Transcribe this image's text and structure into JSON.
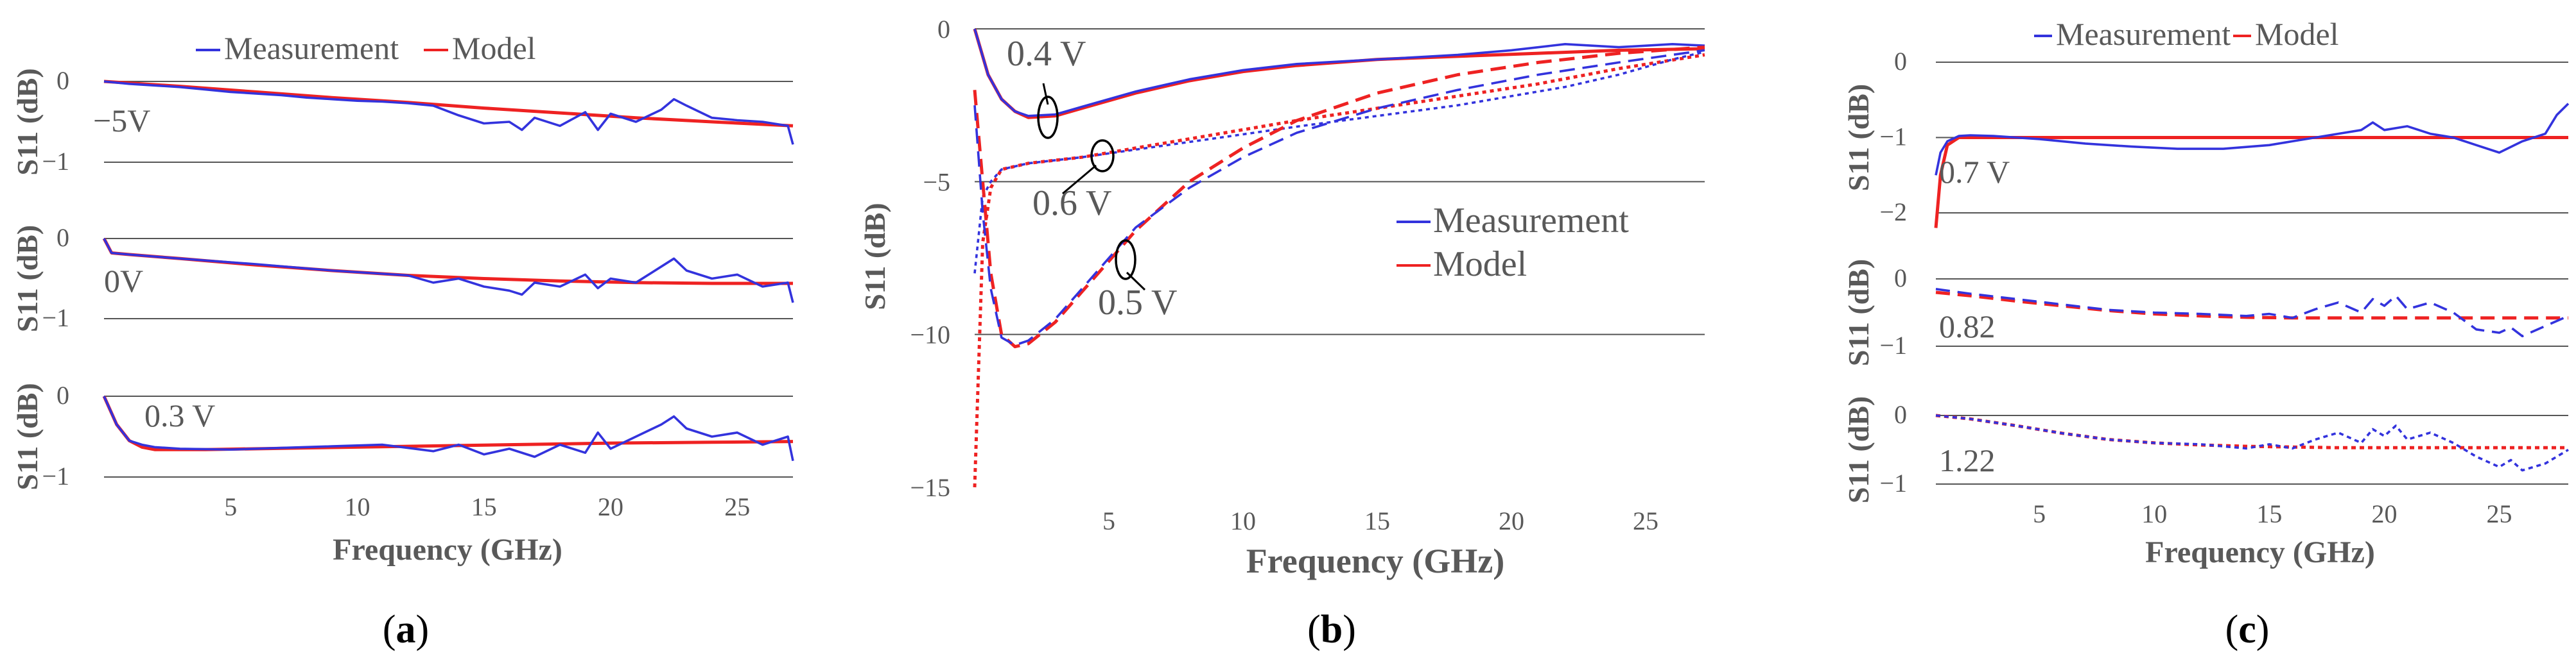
{
  "colors": {
    "measurement": "#3333dd",
    "model": "#ee2222",
    "grid": "#555555",
    "text": "#595959"
  },
  "chart_data": [
    {
      "panel": "a",
      "type": "line",
      "panel_label_parts": [
        "(",
        "a",
        ")"
      ],
      "legend": [
        "Measurement",
        "Model"
      ],
      "xlabel": "Frequency (GHz)",
      "x_ticks": [
        "5",
        "10",
        "15",
        "20",
        "25"
      ],
      "xlim": [
        0,
        27.2
      ],
      "subplots": [
        {
          "ylabel": "S11 (dB)",
          "y_ticks": [
            "0",
            "−1"
          ],
          "ylim": [
            -1,
            0
          ],
          "annotation": "−5V",
          "series": [
            {
              "name": "Model",
              "x": [
                0,
                3,
                6,
                9,
                12,
                15,
                18,
                21,
                24,
                27.2
              ],
              "y": [
                0,
                -0.06,
                -0.13,
                -0.2,
                -0.26,
                -0.33,
                -0.39,
                -0.45,
                -0.5,
                -0.55
              ]
            },
            {
              "name": "Measurement",
              "x": [
                0,
                1,
                2,
                3,
                4,
                5,
                6,
                7,
                8,
                9,
                10,
                11,
                12,
                13,
                14,
                15,
                16,
                16.5,
                17,
                18,
                19,
                19.5,
                20,
                21,
                22,
                22.5,
                23,
                24,
                25,
                26,
                27,
                27.2
              ],
              "y": [
                0,
                -0.03,
                -0.05,
                -0.07,
                -0.1,
                -0.13,
                -0.15,
                -0.17,
                -0.2,
                -0.22,
                -0.24,
                -0.25,
                -0.27,
                -0.3,
                -0.42,
                -0.52,
                -0.5,
                -0.6,
                -0.45,
                -0.55,
                -0.38,
                -0.6,
                -0.4,
                -0.5,
                -0.35,
                -0.22,
                -0.3,
                -0.45,
                -0.48,
                -0.5,
                -0.55,
                -0.78
              ]
            }
          ]
        },
        {
          "ylabel": "S11 (dB)",
          "y_ticks": [
            "0",
            "−1"
          ],
          "ylim": [
            -1,
            0
          ],
          "annotation": "0V",
          "series": [
            {
              "name": "Model",
              "x": [
                0,
                0.3,
                1,
                3,
                6,
                9,
                12,
                15,
                18,
                21,
                24,
                27.2
              ],
              "y": [
                0,
                -0.18,
                -0.2,
                -0.25,
                -0.33,
                -0.4,
                -0.46,
                -0.5,
                -0.53,
                -0.55,
                -0.56,
                -0.56
              ]
            },
            {
              "name": "Measurement",
              "x": [
                0,
                0.3,
                1,
                3,
                6,
                9,
                12,
                13,
                14,
                15,
                16,
                16.5,
                17,
                18,
                19,
                19.5,
                20,
                21,
                22,
                22.5,
                23,
                24,
                25,
                26,
                27,
                27.2
              ],
              "y": [
                0,
                -0.18,
                -0.2,
                -0.25,
                -0.32,
                -0.4,
                -0.46,
                -0.55,
                -0.5,
                -0.6,
                -0.65,
                -0.7,
                -0.55,
                -0.6,
                -0.45,
                -0.62,
                -0.5,
                -0.55,
                -0.35,
                -0.25,
                -0.4,
                -0.5,
                -0.45,
                -0.6,
                -0.55,
                -0.8
              ]
            }
          ]
        },
        {
          "ylabel": "S11 (dB)",
          "y_ticks": [
            "0",
            "−1"
          ],
          "ylim": [
            -1,
            0
          ],
          "annotation": "0.3 V",
          "series": [
            {
              "name": "Model",
              "x": [
                0,
                0.5,
                1,
                1.5,
                2,
                4,
                8,
                12,
                16,
                20,
                24,
                27.2
              ],
              "y": [
                0,
                -0.35,
                -0.55,
                -0.63,
                -0.66,
                -0.66,
                -0.64,
                -0.62,
                -0.6,
                -0.58,
                -0.57,
                -0.56
              ]
            },
            {
              "name": "Measurement",
              "x": [
                0,
                0.5,
                1,
                1.5,
                2,
                3,
                5,
                7,
                9,
                11,
                13,
                14,
                15,
                16,
                17,
                18,
                19,
                19.5,
                20,
                21,
                22,
                22.5,
                23,
                24,
                25,
                26,
                27,
                27.2
              ],
              "y": [
                0,
                -0.35,
                -0.55,
                -0.6,
                -0.63,
                -0.65,
                -0.66,
                -0.64,
                -0.62,
                -0.6,
                -0.68,
                -0.6,
                -0.72,
                -0.65,
                -0.75,
                -0.6,
                -0.7,
                -0.45,
                -0.65,
                -0.5,
                -0.35,
                -0.25,
                -0.4,
                -0.5,
                -0.45,
                -0.6,
                -0.5,
                -0.8
              ]
            }
          ]
        }
      ]
    },
    {
      "panel": "b",
      "type": "line",
      "panel_label_parts": [
        "(",
        "b",
        ")"
      ],
      "legend": [
        "Measurement",
        "Model"
      ],
      "xlabel": "Frequency (GHz)",
      "ylabel": "S11 (dB)",
      "x_ticks": [
        "5",
        "10",
        "15",
        "20",
        "25"
      ],
      "y_ticks": [
        "0",
        "−5",
        "−10",
        "−15"
      ],
      "xlim": [
        0,
        27.2
      ],
      "ylim": [
        -15,
        0
      ],
      "annotations": [
        "0.4 V",
        "0.6 V",
        "0.5 V"
      ],
      "series": [
        {
          "name": "Model 0.4 V",
          "x": [
            0,
            0.5,
            1,
            1.5,
            2,
            3,
            4,
            6,
            8,
            10,
            12,
            15,
            18,
            21,
            24,
            27.2
          ],
          "y": [
            0,
            -1.5,
            -2.3,
            -2.7,
            -2.9,
            -2.85,
            -2.6,
            -2.1,
            -1.7,
            -1.4,
            -1.2,
            -1.0,
            -0.9,
            -0.8,
            -0.7,
            -0.65
          ]
        },
        {
          "name": "Measurement 0.4 V",
          "x": [
            0,
            0.5,
            1,
            1.5,
            2,
            3,
            4,
            6,
            8,
            10,
            12,
            15,
            18,
            20,
            22,
            24,
            26,
            27.2
          ],
          "y": [
            0,
            -1.5,
            -2.3,
            -2.7,
            -2.85,
            -2.8,
            -2.55,
            -2.05,
            -1.65,
            -1.35,
            -1.15,
            -1.0,
            -0.85,
            -0.7,
            -0.5,
            -0.6,
            -0.5,
            -0.55
          ]
        },
        {
          "name": "Model 0.6 V",
          "x": [
            0,
            0.3,
            0.6,
            1,
            2,
            4,
            6,
            8,
            10,
            12,
            15,
            18,
            21,
            24,
            27.2
          ],
          "y": [
            -15,
            -7,
            -5.2,
            -4.6,
            -4.4,
            -4.2,
            -3.9,
            -3.6,
            -3.3,
            -3.0,
            -2.6,
            -2.2,
            -1.8,
            -1.3,
            -0.85
          ]
        },
        {
          "name": "Measurement 0.6 V",
          "x": [
            0,
            0.3,
            0.6,
            1,
            2,
            4,
            6,
            8,
            10,
            12,
            15,
            18,
            20,
            22,
            24,
            26,
            27.2
          ],
          "y": [
            -8,
            -5.5,
            -5.0,
            -4.6,
            -4.4,
            -4.2,
            -3.95,
            -3.7,
            -3.45,
            -3.2,
            -2.85,
            -2.5,
            -2.2,
            -1.9,
            -1.5,
            -1.0,
            -0.75
          ]
        },
        {
          "name": "Model 0.5 V",
          "x": [
            0,
            0.3,
            0.6,
            1,
            1.5,
            2,
            3,
            4,
            5,
            6,
            8,
            10,
            12,
            15,
            18,
            21,
            24,
            27.2
          ],
          "y": [
            -2,
            -5,
            -8,
            -10,
            -10.4,
            -10.3,
            -9.6,
            -8.6,
            -7.6,
            -6.6,
            -5.0,
            -3.9,
            -3.0,
            -2.1,
            -1.5,
            -1.1,
            -0.8,
            -0.6
          ]
        },
        {
          "name": "Measurement 0.5 V",
          "x": [
            0,
            0.3,
            0.6,
            1,
            1.5,
            2,
            3,
            4,
            5,
            6,
            8,
            10,
            12,
            15,
            18,
            21,
            24,
            27.2
          ],
          "y": [
            -2.5,
            -6,
            -8.5,
            -10.1,
            -10.35,
            -10.2,
            -9.5,
            -8.5,
            -7.5,
            -6.5,
            -5.2,
            -4.2,
            -3.4,
            -2.6,
            -2.0,
            -1.5,
            -1.1,
            -0.7
          ]
        }
      ]
    },
    {
      "panel": "c",
      "type": "line",
      "panel_label_parts": [
        "(",
        "c",
        ")"
      ],
      "legend": [
        "Measurement",
        "Model"
      ],
      "xlabel": "Frequency (GHz)",
      "x_ticks": [
        "5",
        "10",
        "15",
        "20",
        "25"
      ],
      "xlim": [
        0.5,
        28
      ],
      "subplots": [
        {
          "ylabel": "S11 (dB)",
          "y_ticks": [
            "0",
            "−1",
            "−2"
          ],
          "ylim": [
            -2,
            0
          ],
          "annotation": "0.7 V",
          "series": [
            {
              "name": "Model",
              "x": [
                0.5,
                0.7,
                1,
                1.5,
                2,
                5,
                10,
                15,
                20,
                25,
                28
              ],
              "y": [
                -2.2,
                -1.5,
                -1.1,
                -1.0,
                -1.0,
                -1.0,
                -1.0,
                -1.0,
                -1.0,
                -1.0,
                -1.0
              ]
            },
            {
              "name": "Measurement",
              "x": [
                0.5,
                0.7,
                1,
                1.5,
                2,
                3,
                5,
                7,
                9,
                11,
                13,
                15,
                16,
                17,
                18,
                19,
                19.5,
                20,
                21,
                22,
                23,
                24,
                25,
                26,
                27,
                27.5,
                28
              ],
              "y": [
                -1.5,
                -1.2,
                -1.05,
                -0.98,
                -0.97,
                -0.98,
                -1.02,
                -1.08,
                -1.12,
                -1.15,
                -1.15,
                -1.1,
                -1.05,
                -1.0,
                -0.95,
                -0.9,
                -0.8,
                -0.9,
                -0.85,
                -0.95,
                -1.0,
                -1.1,
                -1.2,
                -1.05,
                -0.95,
                -0.7,
                -0.55
              ]
            }
          ]
        },
        {
          "ylabel": "S11 (dB)",
          "y_ticks": [
            "0",
            "−1"
          ],
          "ylim": [
            -1,
            0
          ],
          "annotation": "0.82",
          "series": [
            {
              "name": "Model",
              "x": [
                0.5,
                2,
                4,
                6,
                8,
                10,
                12,
                14,
                16,
                18,
                20,
                22,
                24,
                26,
                28
              ],
              "y": [
                -0.2,
                -0.25,
                -0.33,
                -0.4,
                -0.47,
                -0.52,
                -0.55,
                -0.57,
                -0.58,
                -0.58,
                -0.58,
                -0.58,
                -0.58,
                -0.58,
                -0.58
              ]
            },
            {
              "name": "Measurement",
              "x": [
                0.5,
                2,
                4,
                6,
                8,
                10,
                12,
                14,
                15,
                16,
                17,
                18,
                19,
                19.5,
                20,
                20.5,
                21,
                22,
                23,
                24,
                25,
                25.5,
                26,
                27,
                28
              ],
              "y": [
                -0.15,
                -0.22,
                -0.3,
                -0.38,
                -0.46,
                -0.5,
                -0.52,
                -0.55,
                -0.52,
                -0.58,
                -0.45,
                -0.35,
                -0.5,
                -0.3,
                -0.4,
                -0.25,
                -0.45,
                -0.35,
                -0.5,
                -0.75,
                -0.8,
                -0.72,
                -0.85,
                -0.7,
                -0.55
              ]
            }
          ]
        },
        {
          "ylabel": "S11 (dB)",
          "y_ticks": [
            "0",
            "−1"
          ],
          "ylim": [
            -1,
            0
          ],
          "annotation": "1.22",
          "series": [
            {
              "name": "Model",
              "x": [
                0.5,
                2,
                4,
                6,
                8,
                10,
                12,
                14,
                16,
                18,
                20,
                22,
                24,
                26,
                28
              ],
              "y": [
                0,
                -0.05,
                -0.15,
                -0.26,
                -0.35,
                -0.4,
                -0.43,
                -0.45,
                -0.46,
                -0.47,
                -0.47,
                -0.47,
                -0.47,
                -0.47,
                -0.47
              ]
            },
            {
              "name": "Measurement",
              "x": [
                0.5,
                2,
                4,
                6,
                8,
                10,
                12,
                14,
                15,
                16,
                17,
                18,
                19,
                19.5,
                20,
                20.5,
                21,
                22,
                23,
                24,
                25,
                25.5,
                26,
                27,
                28
              ],
              "y": [
                0,
                -0.05,
                -0.15,
                -0.26,
                -0.35,
                -0.4,
                -0.42,
                -0.48,
                -0.42,
                -0.48,
                -0.35,
                -0.25,
                -0.4,
                -0.2,
                -0.3,
                -0.15,
                -0.35,
                -0.25,
                -0.4,
                -0.6,
                -0.75,
                -0.65,
                -0.8,
                -0.7,
                -0.5
              ]
            }
          ]
        }
      ]
    }
  ]
}
